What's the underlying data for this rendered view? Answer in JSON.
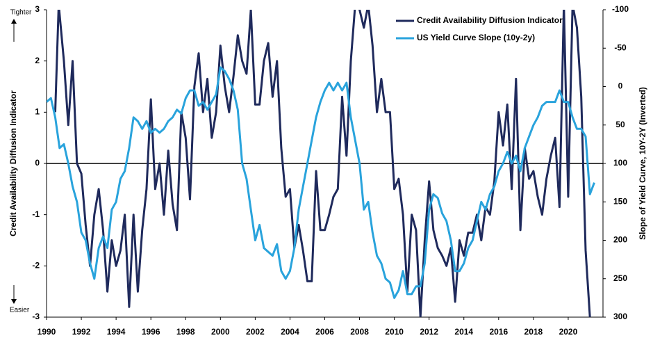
{
  "chart_data": {
    "type": "line",
    "y_label": "Credit Availability Diffusion Indicator",
    "y2_label": "Slope of Yield Curve, 10Y-2Y  (Inverted)",
    "top_note": "Tighter",
    "bottom_note": "Easier",
    "xlim": [
      1990,
      2022
    ],
    "xticks": [
      1990,
      1992,
      1994,
      1996,
      1998,
      2000,
      2002,
      2004,
      2006,
      2008,
      2010,
      2012,
      2014,
      2016,
      2018,
      2020
    ],
    "ylim": [
      -3,
      3
    ],
    "yticks": [
      -3,
      -2,
      -1,
      0,
      1,
      2,
      3
    ],
    "y2lim": [
      -100,
      300
    ],
    "y2_inverted": true,
    "y2ticks": [
      -100,
      -50,
      0,
      50,
      100,
      150,
      200,
      250,
      300
    ],
    "legend": "upper right",
    "grid": false,
    "series": [
      {
        "name": "Credit Availability Diffusion Indicator",
        "color": "#1f2a5c",
        "x": [
          1990.5,
          1990.7,
          1991,
          1991.25,
          1991.5,
          1991.75,
          1992,
          1992.25,
          1992.5,
          1992.75,
          1993,
          1993.25,
          1993.5,
          1993.75,
          1994,
          1994.25,
          1994.5,
          1994.75,
          1995,
          1995.25,
          1995.5,
          1995.75,
          1996,
          1996.25,
          1996.5,
          1996.75,
          1997,
          1997.25,
          1997.5,
          1997.75,
          1998,
          1998.25,
          1998.5,
          1998.75,
          1999,
          1999.25,
          1999.5,
          1999.75,
          2000,
          2000.25,
          2000.5,
          2000.75,
          2001,
          2001.25,
          2001.5,
          2001.75,
          2002,
          2002.25,
          2002.5,
          2002.75,
          2003,
          2003.25,
          2003.5,
          2003.75,
          2004,
          2004.25,
          2004.5,
          2004.75,
          2005,
          2005.25,
          2005.5,
          2005.75,
          2006,
          2006.25,
          2006.5,
          2006.75,
          2007,
          2007.25,
          2007.5,
          2007.75,
          2008,
          2008.25,
          2008.5,
          2008.75,
          2009,
          2009.25,
          2009.5,
          2009.75,
          2010,
          2010.25,
          2010.5,
          2010.75,
          2011,
          2011.25,
          2011.5,
          2011.75,
          2012,
          2012.25,
          2012.5,
          2012.75,
          2013,
          2013.25,
          2013.5,
          2013.75,
          2014,
          2014.25,
          2014.5,
          2014.75,
          2015,
          2015.25,
          2015.5,
          2015.75,
          2016,
          2016.25,
          2016.5,
          2016.75,
          2017,
          2017.25,
          2017.5,
          2017.75,
          2018,
          2018.25,
          2018.5,
          2018.75,
          2019,
          2019.25,
          2019.5,
          2019.75,
          2020,
          2020.25,
          2020.5,
          2020.75,
          2021,
          2021.25
        ],
        "values": [
          1.0,
          3.1,
          2.0,
          0.75,
          2.0,
          0.0,
          -0.2,
          -1.2,
          -2.0,
          -1.0,
          -0.5,
          -1.3,
          -2.5,
          -1.5,
          -2.0,
          -1.7,
          -1.0,
          -2.8,
          -1.0,
          -2.5,
          -1.3,
          -0.5,
          1.25,
          -0.5,
          0.0,
          -1.0,
          0.25,
          -0.8,
          -1.3,
          1.0,
          0.5,
          -0.7,
          1.5,
          2.15,
          1.0,
          1.65,
          0.5,
          1.0,
          2.3,
          1.5,
          1.0,
          1.7,
          2.5,
          2.0,
          1.75,
          3.0,
          1.15,
          1.15,
          2.0,
          2.35,
          1.3,
          2.0,
          0.3,
          -0.65,
          -0.5,
          -1.65,
          -1.2,
          -1.7,
          -2.3,
          -2.3,
          -0.15,
          -1.3,
          -1.3,
          -1.0,
          -0.65,
          -0.5,
          1.3,
          0.15,
          2.0,
          3.1,
          3.0,
          2.65,
          3.1,
          2.3,
          1.0,
          1.65,
          1.0,
          1.0,
          -0.5,
          -0.3,
          -1.0,
          -2.5,
          -1.0,
          -1.3,
          -3.0,
          -1.5,
          -0.35,
          -1.3,
          -1.65,
          -1.8,
          -2.0,
          -1.65,
          -2.7,
          -1.5,
          -1.8,
          -1.35,
          -1.35,
          -1.0,
          -1.5,
          -0.85,
          -1.0,
          -0.35,
          1.0,
          0.35,
          1.15,
          -0.5,
          1.65,
          -1.3,
          0.3,
          -0.3,
          -0.15,
          -0.65,
          -1.0,
          -0.3,
          0.15,
          0.5,
          -0.85,
          3.1,
          -0.65,
          3.1,
          2.65,
          1.3,
          -1.7,
          -3.0
        ]
      },
      {
        "name": "US Yield Curve Slope (10y-2y)",
        "color": "#29a3dc",
        "axis": "y2",
        "x": [
          1990,
          1990.25,
          1990.5,
          1990.75,
          1991,
          1991.25,
          1991.5,
          1991.75,
          1992,
          1992.25,
          1992.5,
          1992.75,
          1993,
          1993.25,
          1993.5,
          1993.75,
          1994,
          1994.25,
          1994.5,
          1994.75,
          1995,
          1995.25,
          1995.5,
          1995.75,
          1996,
          1996.25,
          1996.5,
          1996.75,
          1997,
          1997.25,
          1997.5,
          1997.75,
          1998,
          1998.25,
          1998.5,
          1998.75,
          1999,
          1999.25,
          1999.5,
          1999.75,
          2000,
          2000.25,
          2000.5,
          2000.75,
          2001,
          2001.25,
          2001.5,
          2001.75,
          2002,
          2002.25,
          2002.5,
          2002.75,
          2003,
          2003.25,
          2003.5,
          2003.75,
          2004,
          2004.25,
          2004.5,
          2004.75,
          2005,
          2005.25,
          2005.5,
          2005.75,
          2006,
          2006.25,
          2006.5,
          2006.75,
          2007,
          2007.25,
          2007.5,
          2007.75,
          2008,
          2008.25,
          2008.5,
          2008.75,
          2009,
          2009.25,
          2009.5,
          2009.75,
          2010,
          2010.25,
          2010.5,
          2010.75,
          2011,
          2011.25,
          2011.5,
          2011.75,
          2012,
          2012.25,
          2012.5,
          2012.75,
          2013,
          2013.25,
          2013.5,
          2013.75,
          2014,
          2014.25,
          2014.5,
          2014.75,
          2015,
          2015.25,
          2015.5,
          2015.75,
          2016,
          2016.25,
          2016.5,
          2016.75,
          2017,
          2017.25,
          2017.5,
          2017.75,
          2018,
          2018.25,
          2018.5,
          2018.75,
          2019,
          2019.25,
          2019.5,
          2019.75,
          2020,
          2020.25,
          2020.5,
          2020.75,
          2021,
          2021.25,
          2021.5
        ],
        "values": [
          20,
          15,
          40,
          80,
          75,
          100,
          130,
          150,
          190,
          200,
          230,
          250,
          210,
          195,
          210,
          160,
          150,
          120,
          110,
          80,
          40,
          45,
          55,
          45,
          60,
          55,
          60,
          55,
          45,
          40,
          30,
          35,
          15,
          5,
          5,
          25,
          20,
          30,
          20,
          10,
          -25,
          -20,
          -10,
          5,
          30,
          100,
          120,
          160,
          200,
          180,
          210,
          215,
          220,
          205,
          240,
          250,
          240,
          210,
          160,
          130,
          100,
          70,
          40,
          20,
          5,
          -5,
          5,
          -5,
          5,
          -5,
          40,
          70,
          100,
          160,
          150,
          190,
          220,
          230,
          250,
          255,
          275,
          265,
          240,
          270,
          270,
          260,
          260,
          230,
          160,
          140,
          145,
          165,
          175,
          200,
          240,
          240,
          230,
          210,
          200,
          175,
          150,
          160,
          140,
          130,
          110,
          100,
          85,
          100,
          90,
          110,
          80,
          65,
          50,
          40,
          25,
          20,
          20,
          20,
          5,
          20,
          20,
          40,
          55,
          55,
          65,
          140,
          125
        ]
      }
    ]
  }
}
